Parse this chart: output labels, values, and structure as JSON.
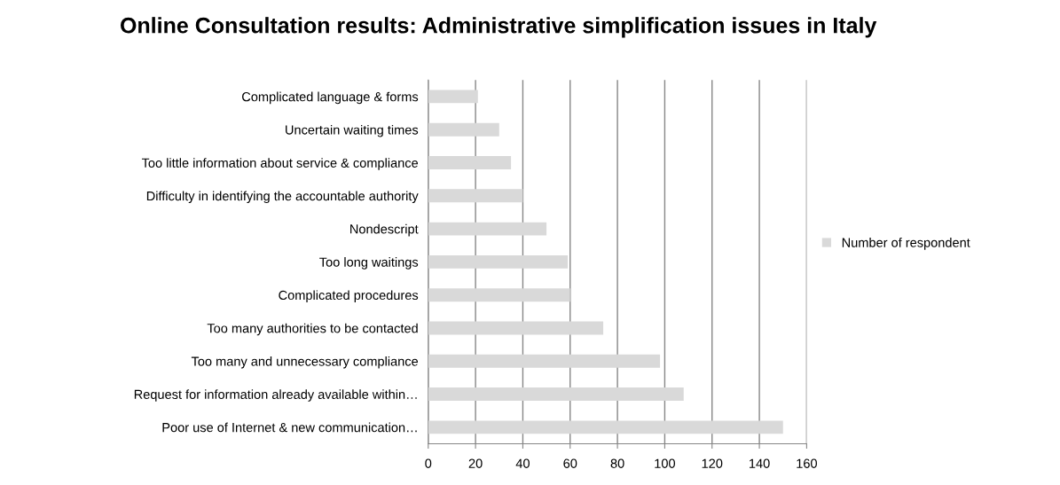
{
  "chart_data": {
    "type": "bar",
    "orientation": "horizontal",
    "title": "Online Consultation results: Administrative simplification issues in Italy",
    "categories": [
      "Complicated language & forms",
      "Uncertain waiting times",
      "Too little information about service & compliance",
      "Difficulty in identifying the accountable authority",
      "Nondescript",
      "Too long waitings",
      "Complicated procedures",
      "Too many authorities to be contacted",
      "Too many and unnecessary compliance",
      "Request for information already available within…",
      "Poor use of Internet & new communication…"
    ],
    "series": [
      {
        "name": "Number of respondent",
        "color": "#d9d9d9",
        "values": [
          21,
          30,
          35,
          40,
          50,
          59,
          60,
          74,
          98,
          108,
          150
        ]
      }
    ],
    "xlim": [
      0,
      160
    ],
    "xticks": [
      0,
      20,
      40,
      60,
      80,
      100,
      120,
      140,
      160
    ],
    "grid": "x",
    "legend": "right"
  }
}
